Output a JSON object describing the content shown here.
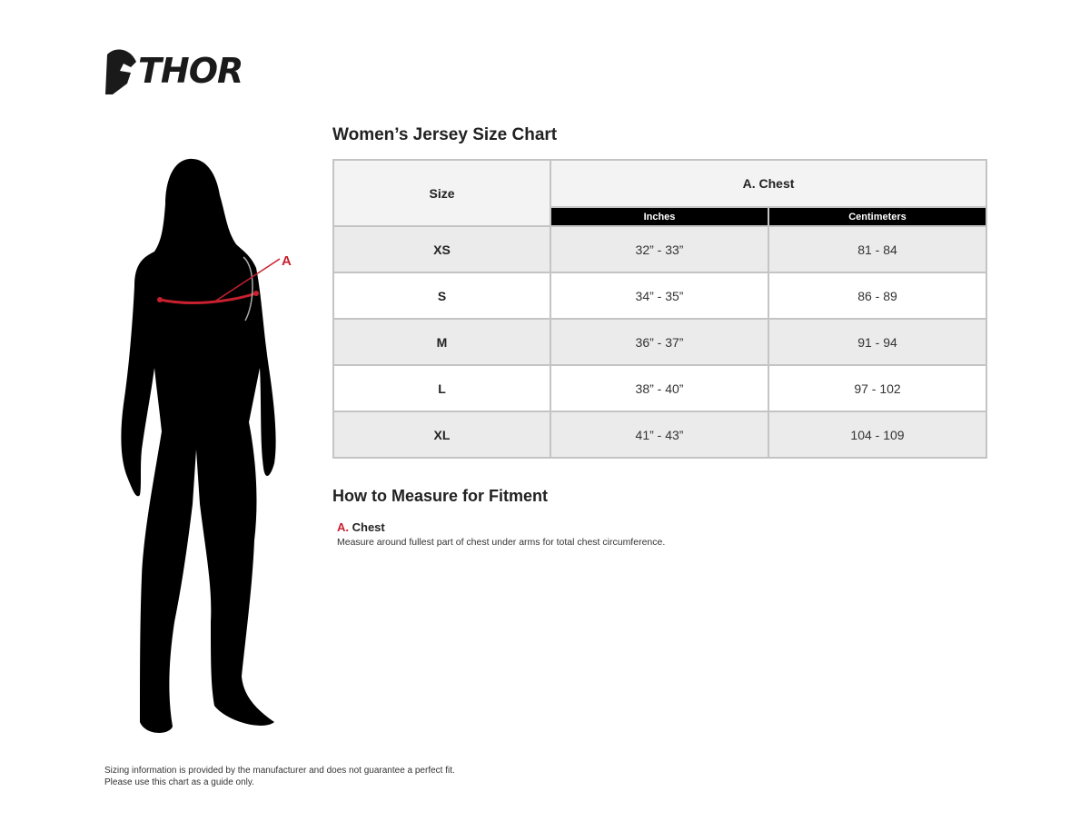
{
  "logo": {
    "text": "THOR"
  },
  "chart": {
    "title": "Women’s Jersey Size Chart",
    "size_header": "Size",
    "measure_header": "A. Chest",
    "sub_headers": [
      "Inches",
      "Centimeters"
    ],
    "rows": [
      {
        "size": "XS",
        "inches": "32” - 33”",
        "cm": "81 - 84"
      },
      {
        "size": "S",
        "inches": "34” - 35”",
        "cm": "86 - 89"
      },
      {
        "size": "M",
        "inches": "36” - 37”",
        "cm": "91 - 94"
      },
      {
        "size": "L",
        "inches": "38” - 40”",
        "cm": "97 - 102"
      },
      {
        "size": "XL",
        "inches": "41” - 43”",
        "cm": "104 - 109"
      }
    ]
  },
  "figure": {
    "marker": "A",
    "accent": "#c8202f"
  },
  "howto": {
    "title": "How to Measure for Fitment",
    "letter": "A.",
    "label": "Chest",
    "description": "Measure around fullest part of chest under arms for total chest circumference."
  },
  "disclaimer": {
    "line1": "Sizing information is provided by the manufacturer and does not guarantee a perfect fit.",
    "line2": "Please use this chart as a guide only."
  }
}
